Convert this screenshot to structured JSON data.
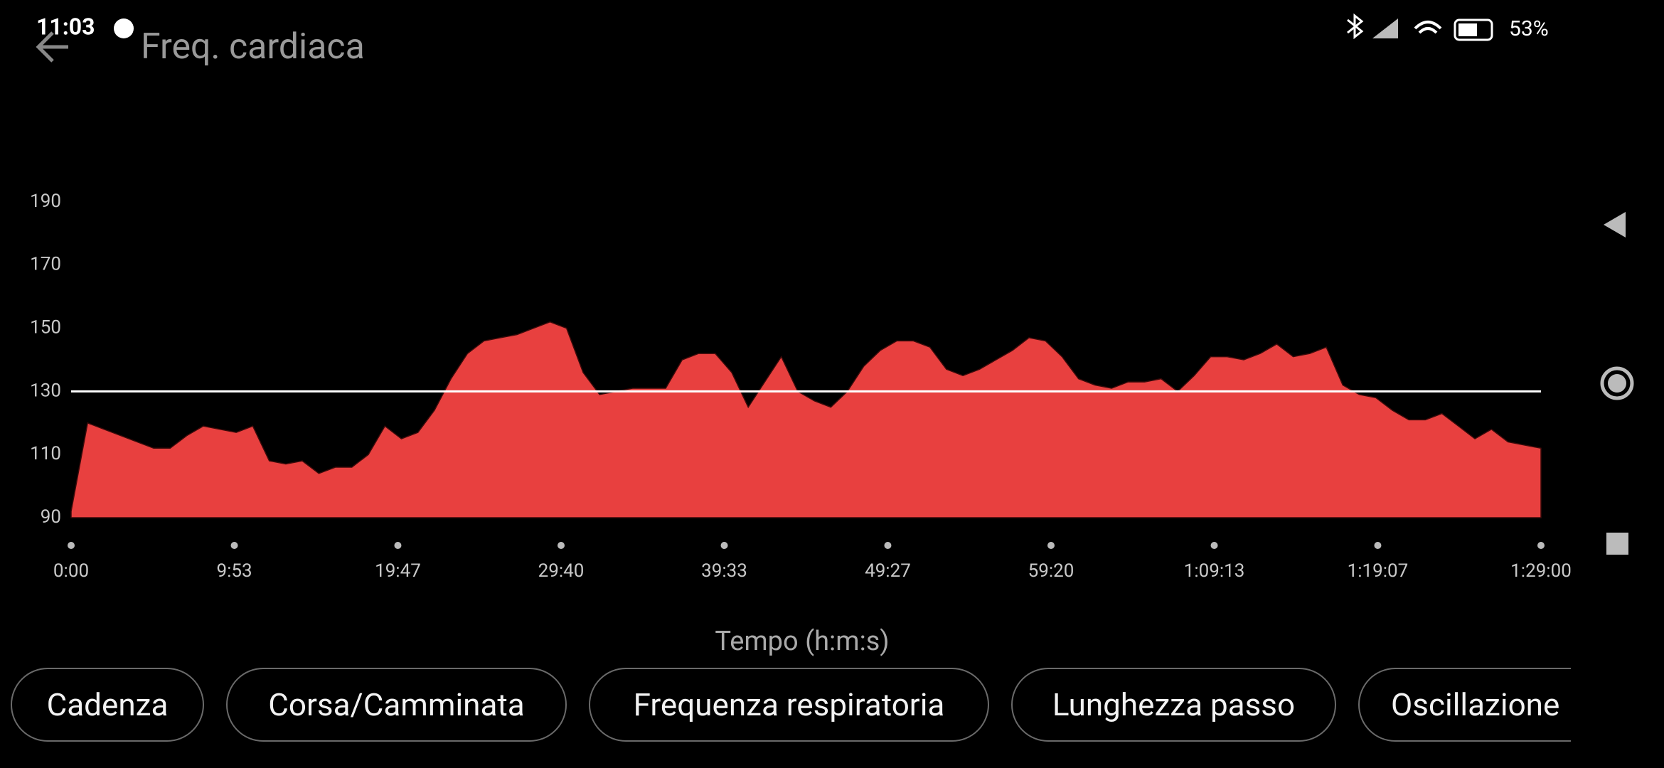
{
  "status_bar": {
    "time": "11:03",
    "battery": "53%"
  },
  "header": {
    "title": "Freq. cardiaca"
  },
  "chart_data": {
    "type": "area",
    "x_label": "Tempo (h:m:s)",
    "x": [
      0,
      60,
      120,
      180,
      240,
      300,
      360,
      420,
      480,
      540,
      600,
      660,
      720,
      780,
      840,
      900,
      960,
      1020,
      1080,
      1140,
      1200,
      1260,
      1320,
      1380,
      1440,
      1500,
      1560,
      1620,
      1680,
      1740,
      1800,
      1860,
      1920,
      1980,
      2040,
      2100,
      2160,
      2220,
      2280,
      2340,
      2400,
      2460,
      2520,
      2580,
      2640,
      2700,
      2760,
      2820,
      2880,
      2940,
      3000,
      3060,
      3120,
      3180,
      3240,
      3300,
      3360,
      3420,
      3480,
      3540,
      3600,
      3660,
      3720,
      3780,
      3840,
      3900,
      3960,
      4020,
      4080,
      4140,
      4200,
      4260,
      4320,
      4380,
      4440,
      4500,
      4560,
      4620,
      4680,
      4740,
      4800,
      4860,
      4920,
      4980,
      5040,
      5100,
      5160,
      5220,
      5280,
      5340
    ],
    "series": [
      {
        "color": "#e8403f",
        "values": [
          92,
          120,
          118,
          116,
          114,
          112,
          112,
          116,
          119,
          118,
          117,
          119,
          108,
          107,
          108,
          104,
          106,
          106,
          110,
          119,
          115,
          117,
          124,
          134,
          142,
          146,
          147,
          148,
          150,
          152,
          150,
          136,
          129,
          130,
          131,
          131,
          131,
          140,
          142,
          142,
          136,
          125,
          133,
          141,
          130,
          127,
          125,
          130,
          138,
          143,
          146,
          146,
          144,
          137,
          135,
          137,
          140,
          143,
          147,
          146,
          141,
          134,
          132,
          131,
          133,
          133,
          134,
          130,
          135,
          141,
          141,
          140,
          142,
          145,
          141,
          142,
          144,
          132,
          129,
          128,
          124,
          121,
          121,
          123,
          119,
          115,
          118,
          114,
          113,
          112
        ]
      }
    ],
    "reference_line": 130,
    "xlim": [
      0,
      5340
    ],
    "xticks": [
      {
        "value": 0,
        "label": "0:00"
      },
      {
        "value": 593,
        "label": "9:53"
      },
      {
        "value": 1187,
        "label": "19:47"
      },
      {
        "value": 1780,
        "label": "29:40"
      },
      {
        "value": 2373,
        "label": "39:33"
      },
      {
        "value": 2967,
        "label": "49:27"
      },
      {
        "value": 3560,
        "label": "59:20"
      },
      {
        "value": 4153,
        "label": "1:09:13"
      },
      {
        "value": 4747,
        "label": "1:19:07"
      },
      {
        "value": 5340,
        "label": "1:29:00"
      }
    ],
    "ylim": [
      90,
      190
    ],
    "yticks": [
      90,
      110,
      130,
      150,
      170,
      190
    ]
  },
  "chips": [
    "Cadenza",
    "Corsa/Camminata",
    "Frequenza respiratoria",
    "Lunghezza passo",
    "Oscillazione"
  ]
}
